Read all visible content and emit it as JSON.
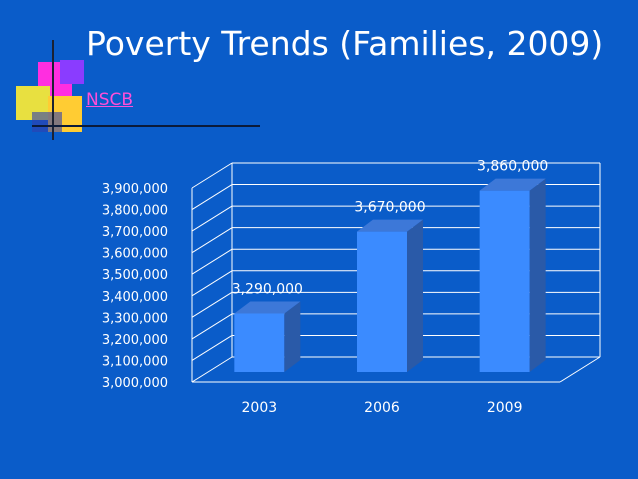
{
  "slide": {
    "title_text": "Poverty Trends (Families, 2009)",
    "source_link": " NSCB"
  },
  "colors": {
    "background": "#0a5cc9",
    "bar_front": "#3b8bff",
    "bar_side": "#2a5aa8",
    "bar_top": "#3d78d8",
    "grid": "#ffffff",
    "title_text": "#ffffff",
    "link_text": "#ff4fd8",
    "label_text": "#ffffff"
  },
  "chart_data": {
    "type": "bar",
    "categories": [
      "2003",
      "2006",
      "2009"
    ],
    "values": [
      3290000,
      3670000,
      3860000
    ],
    "data_labels": [
      "3,290,000",
      "3,670,000",
      "3,860,000"
    ],
    "y_ticks": [
      "3,000,000",
      "3,100,000",
      "3,200,000",
      "3,300,000",
      "3,400,000",
      "3,500,000",
      "3,600,000",
      "3,700,000",
      "3,800,000",
      "3,900,000"
    ],
    "ylim": [
      3000000,
      3900000
    ],
    "title": "",
    "xlabel": "",
    "ylabel": "",
    "grid": true,
    "legend": false,
    "style": "3d-columns"
  }
}
